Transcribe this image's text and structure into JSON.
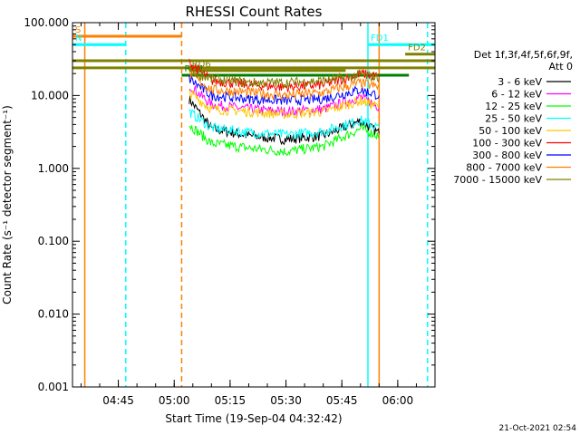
{
  "chart_data": {
    "type": "line",
    "title": "RHESSI Count Rates",
    "xlabel": "Start Time (19-Sep-04 04:32:42)",
    "ylabel": "Count Rate (s⁻¹ detector segment⁻¹)",
    "y_scale": "log",
    "ylim": [
      0.001,
      100
    ],
    "xlim": [
      "04:32:42",
      "06:10:00"
    ],
    "x_ticks": [
      "04:45",
      "05:00",
      "05:15",
      "05:30",
      "05:45",
      "06:00"
    ],
    "y_ticks": [
      "100.000",
      "10.000",
      "1.000",
      "0.100",
      "0.010",
      "0.001"
    ],
    "legend": {
      "header": [
        "Det 1f,3f,4f,5f,6f,9f,",
        "Att 0"
      ],
      "placement": "right",
      "entries": [
        {
          "label": "3 - 6 keV",
          "color": "#000000"
        },
        {
          "label": "6 - 12 keV",
          "color": "#ff00ff"
        },
        {
          "label": "12 - 25 keV",
          "color": "#00ff00"
        },
        {
          "label": "25 - 50 keV",
          "color": "#00ffff"
        },
        {
          "label": "50 - 100 keV",
          "color": "#ffc800"
        },
        {
          "label": "100 - 300 keV",
          "color": "#ff0000"
        },
        {
          "label": "300 - 800 keV",
          "color": "#0000ff"
        },
        {
          "label": "800 - 7000 keV",
          "color": "#ff8000"
        },
        {
          "label": "7000 - 15000 keV",
          "color": "#808000"
        }
      ]
    },
    "series": [
      {
        "name": "3 - 6 keV",
        "color": "#000000",
        "x": [
          "05:04",
          "05:10",
          "05:20",
          "05:30",
          "05:40",
          "05:50",
          "05:55"
        ],
        "y": [
          9,
          3.5,
          2.8,
          2.5,
          2.8,
          4.5,
          3
        ]
      },
      {
        "name": "6 - 12 keV",
        "color": "#ff00ff",
        "x": [
          "05:04",
          "05:10",
          "05:20",
          "05:30",
          "05:40",
          "05:50",
          "05:55"
        ],
        "y": [
          14,
          7.5,
          6.5,
          6,
          6.5,
          9.5,
          7
        ]
      },
      {
        "name": "12 - 25 keV",
        "color": "#00ff00",
        "x": [
          "05:04",
          "05:10",
          "05:20",
          "05:30",
          "05:40",
          "05:50",
          "05:55"
        ],
        "y": [
          4,
          2.2,
          1.9,
          1.7,
          2.0,
          3.5,
          2.8
        ]
      },
      {
        "name": "25 - 50 keV",
        "color": "#00ffff",
        "x": [
          "05:04",
          "05:10",
          "05:20",
          "05:30",
          "05:40",
          "05:50",
          "05:55"
        ],
        "y": [
          6,
          3.6,
          3.1,
          2.9,
          3.2,
          4.6,
          3.6
        ]
      },
      {
        "name": "50 - 100 keV",
        "color": "#ffc800",
        "x": [
          "05:04",
          "05:10",
          "05:20",
          "05:30",
          "05:40",
          "05:50",
          "05:55"
        ],
        "y": [
          11,
          6.5,
          6,
          5.5,
          6,
          8.5,
          7
        ]
      },
      {
        "name": "100 - 300 keV",
        "color": "#ff0000",
        "x": [
          "05:04",
          "05:10",
          "05:20",
          "05:30",
          "05:40",
          "05:50",
          "05:55"
        ],
        "y": [
          28,
          16,
          14,
          13,
          14,
          20,
          18
        ]
      },
      {
        "name": "300 - 800 keV",
        "color": "#0000ff",
        "x": [
          "05:04",
          "05:10",
          "05:20",
          "05:30",
          "05:40",
          "05:50",
          "05:55"
        ],
        "y": [
          17,
          10,
          9,
          8.5,
          9,
          12,
          10
        ]
      },
      {
        "name": "800 - 7000 keV",
        "color": "#ff8000",
        "x": [
          "05:04",
          "05:10",
          "05:20",
          "05:30",
          "05:40",
          "05:50",
          "05:55"
        ],
        "y": [
          20,
          12,
          11,
          10,
          11,
          15,
          13
        ]
      },
      {
        "name": "7000 - 15000 keV",
        "color": "#808000",
        "x": [
          "05:04",
          "05:10",
          "05:20",
          "05:30",
          "05:40",
          "05:50",
          "05:55"
        ],
        "y": [
          22,
          17,
          15,
          15,
          16,
          19,
          18
        ]
      }
    ],
    "state_bars": [
      {
        "label": "S",
        "color": "#ff8000",
        "x_start": "04:32:42",
        "x_end": "05:02",
        "y": 65
      },
      {
        "label": "N",
        "color": "#00ffff",
        "x_start": "04:32:42",
        "x_end": "04:47",
        "y": 50
      },
      {
        "label": "",
        "color": "#808000",
        "x_start": "04:32:42",
        "x_end": "06:10",
        "y": 30
      },
      {
        "label": "",
        "color": "#808000",
        "x_start": "04:32:42",
        "x_end": "06:10",
        "y": 24
      },
      {
        "label": "RD4",
        "color": "#008000",
        "x_start": "05:02",
        "x_end": "06:03",
        "y": 19
      },
      {
        "label": "RD6",
        "color": "#808000",
        "x_start": "05:04",
        "x_end": "05:46",
        "y": 22
      },
      {
        "label": "FD1",
        "color": "#00ffff",
        "x_start": "05:52",
        "x_end": "06:10",
        "y": 50
      },
      {
        "label": "FD2",
        "color": "#808000",
        "x_start": "06:02",
        "x_end": "06:10",
        "y": 37
      }
    ],
    "vertical_markers": [
      {
        "x": "04:36",
        "color": "#ff8000",
        "style": "solid"
      },
      {
        "x": "04:47",
        "color": "#00ffff",
        "style": "dashed"
      },
      {
        "x": "05:02",
        "color": "#ff8000",
        "style": "dashed"
      },
      {
        "x": "05:52",
        "color": "#00ffff",
        "style": "solid"
      },
      {
        "x": "05:55",
        "color": "#ff8000",
        "style": "solid"
      },
      {
        "x": "06:08",
        "color": "#00ffff",
        "style": "dashed"
      }
    ],
    "grid": false
  },
  "footer": {
    "timestamp": "21-Oct-2021 02:54"
  }
}
